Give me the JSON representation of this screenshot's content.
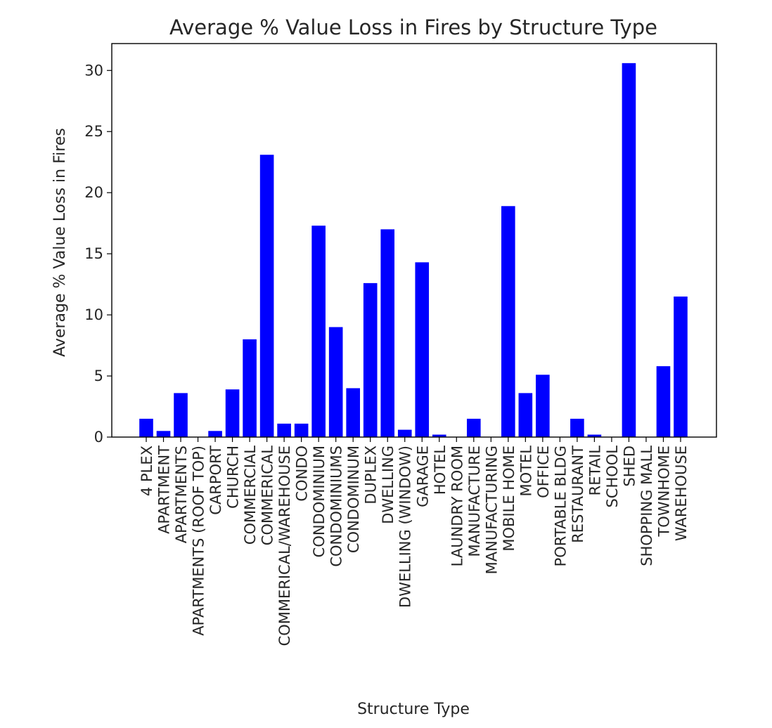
{
  "chart_data": {
    "type": "bar",
    "title": "Average % Value Loss in Fires by Structure Type",
    "xlabel": "Structure Type",
    "ylabel": "Average % Value Loss in Fires",
    "ylim": [
      0,
      32.2
    ],
    "yticks": [
      0,
      5,
      10,
      15,
      20,
      25,
      30
    ],
    "grid": false,
    "bar_color": "#0000ff",
    "categories": [
      "4 PLEX",
      "APARTMENT",
      "APARTMENTS",
      "APARTMENTS (ROOF TOP)",
      "CARPORT",
      "CHURCH",
      "COMMERCIAL",
      "COMMERICAL",
      "COMMERICAL/WAREHOUSE",
      "CONDO",
      "CONDOMINIUM",
      "CONDOMINIUMS",
      "CONDOMINUM",
      "DUPLEX",
      "DWELLING",
      "DWELLING (WINDOW)",
      "GARAGE",
      "HOTEL",
      "LAUNDRY ROOM",
      "MANUFACTURE",
      "MANUFACTURING",
      "MOBILE HOME",
      "MOTEL",
      "OFFICE",
      "PORTABLE BLDG",
      "RESTAURANT",
      "RETAIL",
      "SCHOOL",
      "SHED",
      "SHOPPING MALL",
      "TOWNHOME",
      "WAREHOUSE"
    ],
    "values": [
      1.5,
      0.5,
      3.6,
      0,
      0.5,
      3.9,
      8.0,
      23.1,
      1.1,
      1.1,
      17.3,
      9.0,
      4.0,
      12.6,
      17.0,
      0.6,
      14.3,
      0.2,
      0,
      1.5,
      0,
      18.9,
      3.6,
      5.1,
      0,
      1.5,
      0.2,
      0,
      30.6,
      0,
      5.8,
      11.5
    ]
  }
}
